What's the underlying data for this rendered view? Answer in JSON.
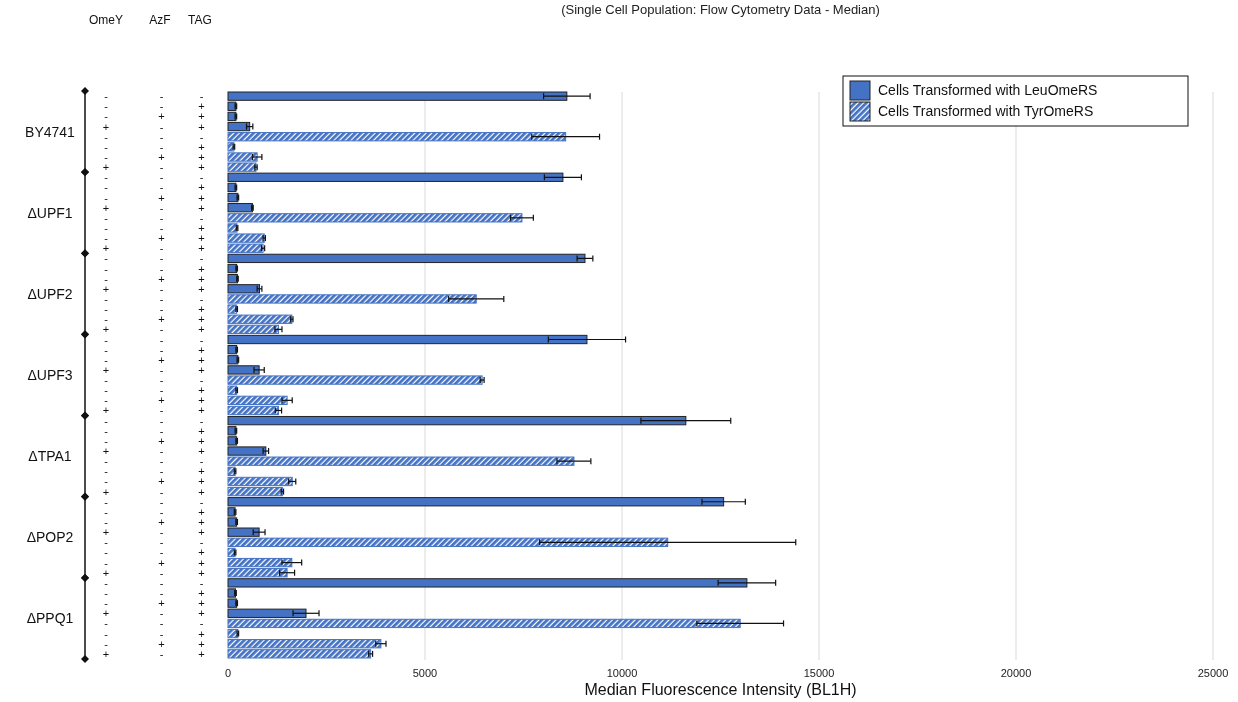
{
  "chart_data": {
    "type": "bar",
    "orientation": "horizontal",
    "title": "(Single Cell Population: Flow Cytometry Data - Median)",
    "xlabel": "Median Fluorescence Intensity (BL1H)",
    "categories": [
      "- - -",
      "- - +",
      "- + +",
      "+ - +",
      "- - -",
      "- - +",
      "- + +",
      "+ - +",
      "- - -",
      "- - +",
      "- + +",
      "+ - +",
      "- - -",
      "- - +",
      "- + +",
      "+ - +",
      "- - -",
      "- - +",
      "- + +",
      "+ - +",
      "- - -",
      "- - +",
      "- + +",
      "+ - +",
      "- - -",
      "- - +",
      "- + +",
      "+ - +",
      "- - -",
      "- - +",
      "- + +",
      "+ - +",
      "- - -",
      "- - +",
      "- + +",
      "+ - +",
      "- - -",
      "- - +",
      "- + +",
      "+ - +",
      "- - -",
      "- - +",
      "- + +",
      "+ - +",
      "- - -",
      "- - +",
      "- + +",
      "+ - +",
      "- - -",
      "- - +",
      "- + +",
      "+ - +",
      "- - -",
      "- - +",
      "- + +",
      "+ - +"
    ],
    "series": [
      {
        "name": "Cells Transformed with LeuOmeRS",
        "color": "#4472c4",
        "values": [
          8600,
          200,
          200,
          550,
          null,
          null,
          null,
          null,
          8500,
          200,
          250,
          620,
          null,
          null,
          null,
          null,
          9060,
          220,
          240,
          800,
          null,
          null,
          null,
          null,
          9110,
          220,
          250,
          790,
          null,
          null,
          null,
          null,
          11620,
          200,
          220,
          960,
          null,
          null,
          null,
          null,
          12580,
          180,
          220,
          790,
          null,
          null,
          null,
          null,
          13170,
          190,
          220,
          1980,
          null,
          null,
          null,
          null
        ],
        "errors": [
          590,
          20,
          20,
          80,
          null,
          null,
          null,
          null,
          470,
          20,
          20,
          20,
          null,
          null,
          null,
          null,
          200,
          20,
          20,
          60,
          null,
          null,
          null,
          null,
          980,
          20,
          20,
          130,
          null,
          null,
          null,
          null,
          1140,
          20,
          20,
          70,
          null,
          null,
          null,
          null,
          550,
          20,
          20,
          150,
          null,
          null,
          null,
          null,
          730,
          20,
          20,
          330,
          null,
          null,
          null,
          null
        ]
      },
      {
        "name": "Cells Transformed with TyrOmeRS",
        "color": "#4472c4",
        "values": [
          null,
          null,
          null,
          null,
          8570,
          150,
          740,
          710,
          null,
          null,
          null,
          null,
          7460,
          230,
          920,
          890,
          null,
          null,
          null,
          null,
          6300,
          220,
          1620,
          1280,
          null,
          null,
          null,
          null,
          6450,
          220,
          1500,
          1280,
          null,
          null,
          null,
          null,
          8780,
          180,
          1630,
          1380,
          null,
          null,
          null,
          null,
          11160,
          180,
          1620,
          1500,
          null,
          null,
          null,
          null,
          13000,
          250,
          3880,
          3620
        ],
        "errors": [
          null,
          null,
          null,
          null,
          860,
          20,
          120,
          30,
          null,
          null,
          null,
          null,
          290,
          20,
          30,
          40,
          null,
          null,
          null,
          null,
          700,
          20,
          30,
          90,
          null,
          null,
          null,
          null,
          50,
          20,
          130,
          80,
          null,
          null,
          null,
          null,
          430,
          20,
          90,
          30,
          null,
          null,
          null,
          null,
          3250,
          20,
          250,
          190,
          null,
          null,
          null,
          null,
          1100,
          20,
          130,
          50
        ]
      }
    ],
    "xlim": [
      0,
      25000
    ],
    "xticks": [
      0,
      5000,
      10000,
      15000,
      20000,
      25000
    ],
    "grid": "x",
    "legend": "top right",
    "annotations": [
      "OmeY",
      "AzF",
      "TAG",
      "BY4741",
      "ΔUPF1",
      "ΔUPF2",
      "ΔUPF3",
      "ΔTPA1",
      "ΔPOP2",
      "ΔPPQ1"
    ]
  }
}
